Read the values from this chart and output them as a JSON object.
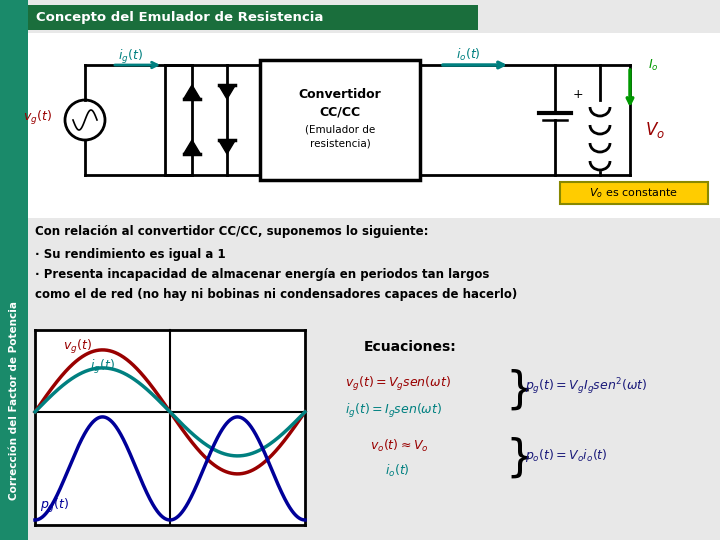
{
  "bg_color": "#e8e8e8",
  "title": "Concepto del Emulador de Resistencia",
  "title_bg": "#1a6e3c",
  "title_color": "#ffffff",
  "sidebar_color": "#1a8a6a",
  "sidebar_text": "Corrección del Factor de Potencia",
  "text1": "Con relación al convertidor CC/CC, suponemos lo siguiente:",
  "text2": "· Su rendimiento es igual a 1",
  "text3": "· Presenta incapacidad de almacenar energía en periodos tan largos\ncomo el de red (no hay ni bobinas ni condensadores capaces de hacerlo)",
  "eq_title": "Ecuaciones:",
  "color_red": "#990000",
  "color_teal": "#008080",
  "color_blue_dark": "#000099",
  "color_navy": "#1a1a7a",
  "color_green": "#009900",
  "color_yellow": "#ffcc00",
  "color_black": "#000000",
  "color_white": "#ffffff"
}
